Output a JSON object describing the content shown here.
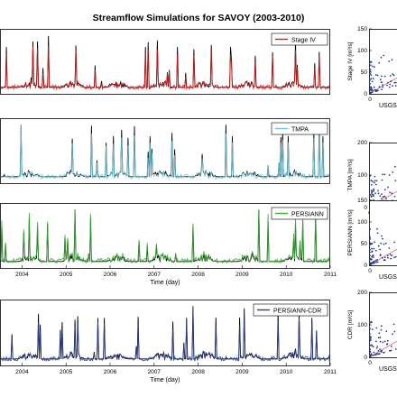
{
  "title": "Streamflow Simulations for SAVOY (2003-2010)",
  "colors": {
    "observed": "#000000",
    "stage_iv": "#d7191c",
    "tmpa": "#6ec6dc",
    "persiann": "#3aaa35",
    "persiann_cdr": "#2b3f8f",
    "one_to_one_line": "#e0405a"
  },
  "chart_data": [
    {
      "type": "line",
      "panel": "stage-iv-timeseries",
      "title": "Streamflow Simulations for SAVOY (2003-2010)",
      "xlabel": "",
      "ylabel": "",
      "x_ticks": [],
      "x_range": [
        "2003-07",
        "2011-01"
      ],
      "legend": "top-right",
      "series": [
        {
          "name": "",
          "color": "#000000",
          "values": []
        },
        {
          "name": "Stage IV",
          "color": "#d7191c",
          "values": []
        }
      ]
    },
    {
      "type": "line",
      "panel": "tmpa-timeseries",
      "xlabel": "",
      "ylabel": "",
      "x_ticks": [],
      "x_range": [
        "2003-07",
        "2011-01"
      ],
      "legend": "top-right",
      "series": [
        {
          "name": "",
          "color": "#000000",
          "values": []
        },
        {
          "name": "TMPA",
          "color": "#6ec6dc",
          "values": []
        }
      ]
    },
    {
      "type": "line",
      "panel": "persiann-timeseries",
      "xlabel": "Time (day)",
      "ylabel": "",
      "x_ticks": [
        "2004",
        "2005",
        "2006",
        "2007",
        "2008",
        "2009",
        "2010",
        "2011"
      ],
      "x_range": [
        "2003-07",
        "2011-01"
      ],
      "legend": "top-right",
      "series": [
        {
          "name": "",
          "color": "#000000",
          "values": []
        },
        {
          "name": "PERSIANN",
          "color": "#3aaa35",
          "values": []
        }
      ]
    },
    {
      "type": "line",
      "panel": "persiann-cdr-timeseries",
      "xlabel": "Time (day)",
      "ylabel": "",
      "x_ticks": [
        "2004",
        "2005",
        "2006",
        "2007",
        "2008",
        "2009",
        "2010",
        "2011"
      ],
      "x_range": [
        "2003-07",
        "2011-01"
      ],
      "legend": "top-right",
      "series": [
        {
          "name": "",
          "color": "#000000",
          "values": []
        },
        {
          "name": "PERSIANN-CDR",
          "color": "#2b3f8f",
          "values": []
        }
      ]
    },
    {
      "type": "scatter",
      "panel": "stage-iv-scatter",
      "xlabel": "USGS",
      "ylabel": "Stage IV [m³/s]",
      "y_ticks": [
        "0",
        "50",
        "100",
        "150"
      ],
      "x_ticks": [
        "0"
      ],
      "ylim": [
        0,
        150
      ]
    },
    {
      "type": "scatter",
      "panel": "tmpa-scatter",
      "xlabel": "USGS",
      "ylabel": "TMPA [m³/s]",
      "y_ticks": [
        "0",
        "100",
        "200"
      ],
      "x_ticks": [
        "0"
      ],
      "ylim": [
        0,
        200
      ]
    },
    {
      "type": "scatter",
      "panel": "persiann-scatter",
      "xlabel": "USGS",
      "ylabel": "PERSIANN [m³/s]",
      "y_ticks": [
        "0",
        "50",
        "100",
        "150"
      ],
      "x_ticks": [
        "0"
      ],
      "ylim": [
        0,
        150
      ]
    },
    {
      "type": "scatter",
      "panel": "persiann-cdr-scatter",
      "xlabel": "USGS",
      "ylabel": "CDR [m³/s]",
      "y_ticks": [
        "0",
        "100",
        "200"
      ],
      "x_ticks": [
        "0"
      ],
      "ylim": [
        0,
        200
      ]
    }
  ]
}
